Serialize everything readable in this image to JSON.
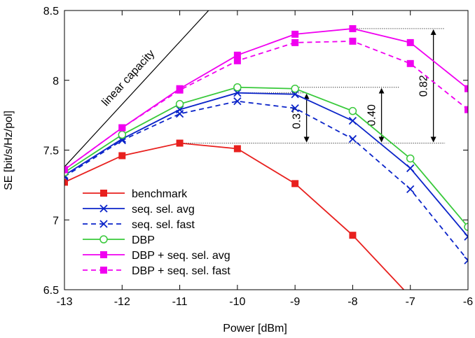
{
  "chart_data": {
    "type": "line",
    "xlabel": "Power [dBm]",
    "ylabel": "SE [bit/s/Hz/pol]",
    "xlim": [
      -13,
      -6
    ],
    "ylim": [
      6.5,
      8.5
    ],
    "xticks": [
      -13,
      -12,
      -11,
      -10,
      -9,
      -8,
      -7,
      -6
    ],
    "yticks": [
      6.5,
      7,
      7.5,
      8,
      8.5
    ],
    "x": [
      -13,
      -12,
      -11,
      -10,
      -9,
      -8,
      -7,
      -6
    ],
    "legend_position": "bottom-left",
    "grid": false,
    "series": [
      {
        "name": "benchmark",
        "color": "#e8201e",
        "dash": "solid",
        "marker": "square-filled",
        "values": [
          7.27,
          7.46,
          7.55,
          7.51,
          7.26,
          6.89,
          6.45,
          null
        ]
      },
      {
        "name": "seq. sel. avg",
        "color": "#0b24c9",
        "dash": "solid",
        "marker": "x",
        "values": [
          7.32,
          7.58,
          7.79,
          7.91,
          7.9,
          7.71,
          7.37,
          6.88
        ]
      },
      {
        "name": "seq. sel. fast",
        "color": "#0b24c9",
        "dash": "dashed",
        "marker": "x",
        "values": [
          7.31,
          7.57,
          7.76,
          7.85,
          7.8,
          7.58,
          7.22,
          6.71
        ]
      },
      {
        "name": "DBP",
        "color": "#38c93a",
        "dash": "solid",
        "marker": "circle-open",
        "values": [
          7.34,
          7.61,
          7.83,
          7.95,
          7.94,
          7.78,
          7.44,
          6.95
        ]
      },
      {
        "name": "DBP + seq. sel. avg",
        "color": "#f000f0",
        "dash": "solid",
        "marker": "square-filled",
        "values": [
          7.36,
          7.66,
          7.94,
          8.18,
          8.33,
          8.37,
          8.27,
          7.94
        ]
      },
      {
        "name": "DBP + seq. sel. fast",
        "color": "#f000f0",
        "dash": "dashed",
        "marker": "square-filled",
        "values": [
          7.36,
          7.66,
          7.93,
          8.14,
          8.27,
          8.28,
          8.12,
          7.79
        ]
      }
    ],
    "reference_line": {
      "label": "linear capacity",
      "x": [
        -13,
        -10.5
      ],
      "y": [
        7.38,
        8.5
      ]
    },
    "annotations": [
      {
        "label": "0.37",
        "x": -8.8,
        "y_from": 7.55,
        "y_to": 7.91,
        "ref_x_from": -11,
        "ref_x_to": -8.8
      },
      {
        "label": "0.40",
        "x": -7.5,
        "y_from": 7.55,
        "y_to": 7.95,
        "ref_x_from": -10,
        "ref_x_to": -7.2
      },
      {
        "label": "0.82",
        "x": -6.6,
        "y_from": 7.55,
        "y_to": 8.37,
        "ref_x_from": -8,
        "ref_x_to": -6.4
      }
    ]
  }
}
